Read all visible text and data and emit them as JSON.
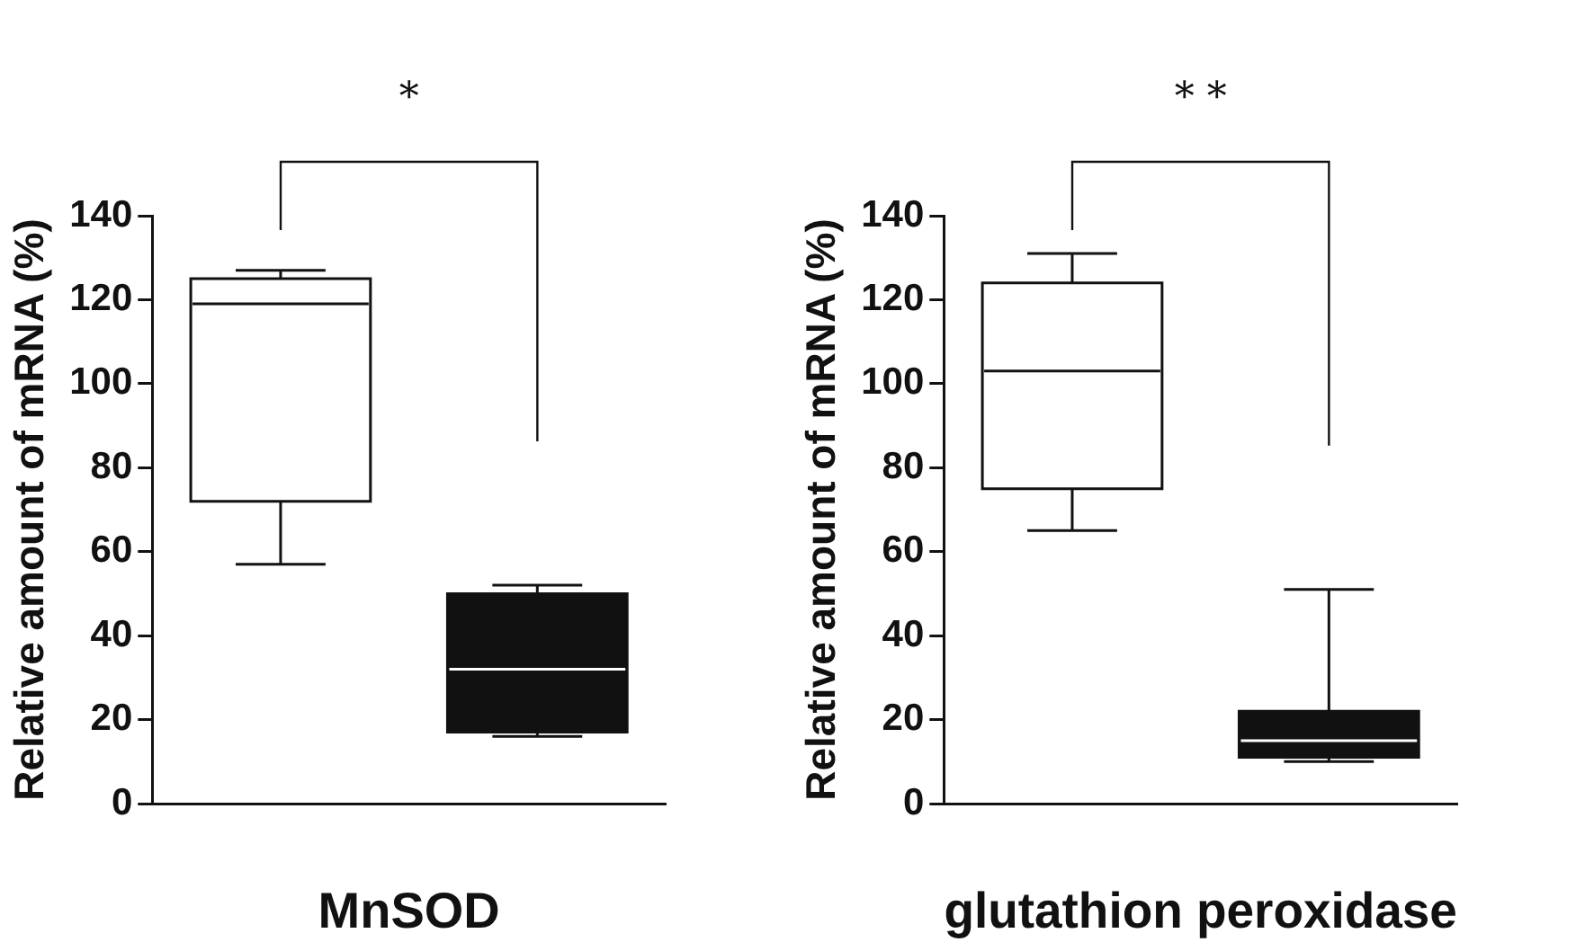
{
  "chart_data": [
    {
      "type": "box",
      "xlabel": "MnSOD",
      "ylabel": "Relative amount of mRNA (%)",
      "categories": [
        null,
        null
      ],
      "colors": [
        "#ffffff",
        "#111111"
      ],
      "boxes": [
        {
          "low": 57,
          "q1": 72,
          "median": 119,
          "q3": 125,
          "high": 127
        },
        {
          "low": 16,
          "q1": 17,
          "median": 32,
          "q3": 50,
          "high": 52
        }
      ],
      "ylim": [
        0,
        140
      ],
      "yticks": [
        0,
        20,
        40,
        60,
        80,
        100,
        120,
        140
      ],
      "annotations": [
        "*"
      ]
    },
    {
      "type": "box",
      "xlabel": "glutathion peroxidase",
      "ylabel": "Relative amount of mRNA (%)",
      "categories": [
        null,
        null
      ],
      "colors": [
        "#ffffff",
        "#111111"
      ],
      "boxes": [
        {
          "low": 65,
          "q1": 75,
          "median": 103,
          "q3": 124,
          "high": 131
        },
        {
          "low": 10,
          "q1": 11,
          "median": 15,
          "q3": 22,
          "high": 51
        }
      ],
      "ylim": [
        0,
        140
      ],
      "yticks": [
        0,
        20,
        40,
        60,
        80,
        100,
        120,
        140
      ],
      "annotations": [
        "* *"
      ]
    }
  ]
}
